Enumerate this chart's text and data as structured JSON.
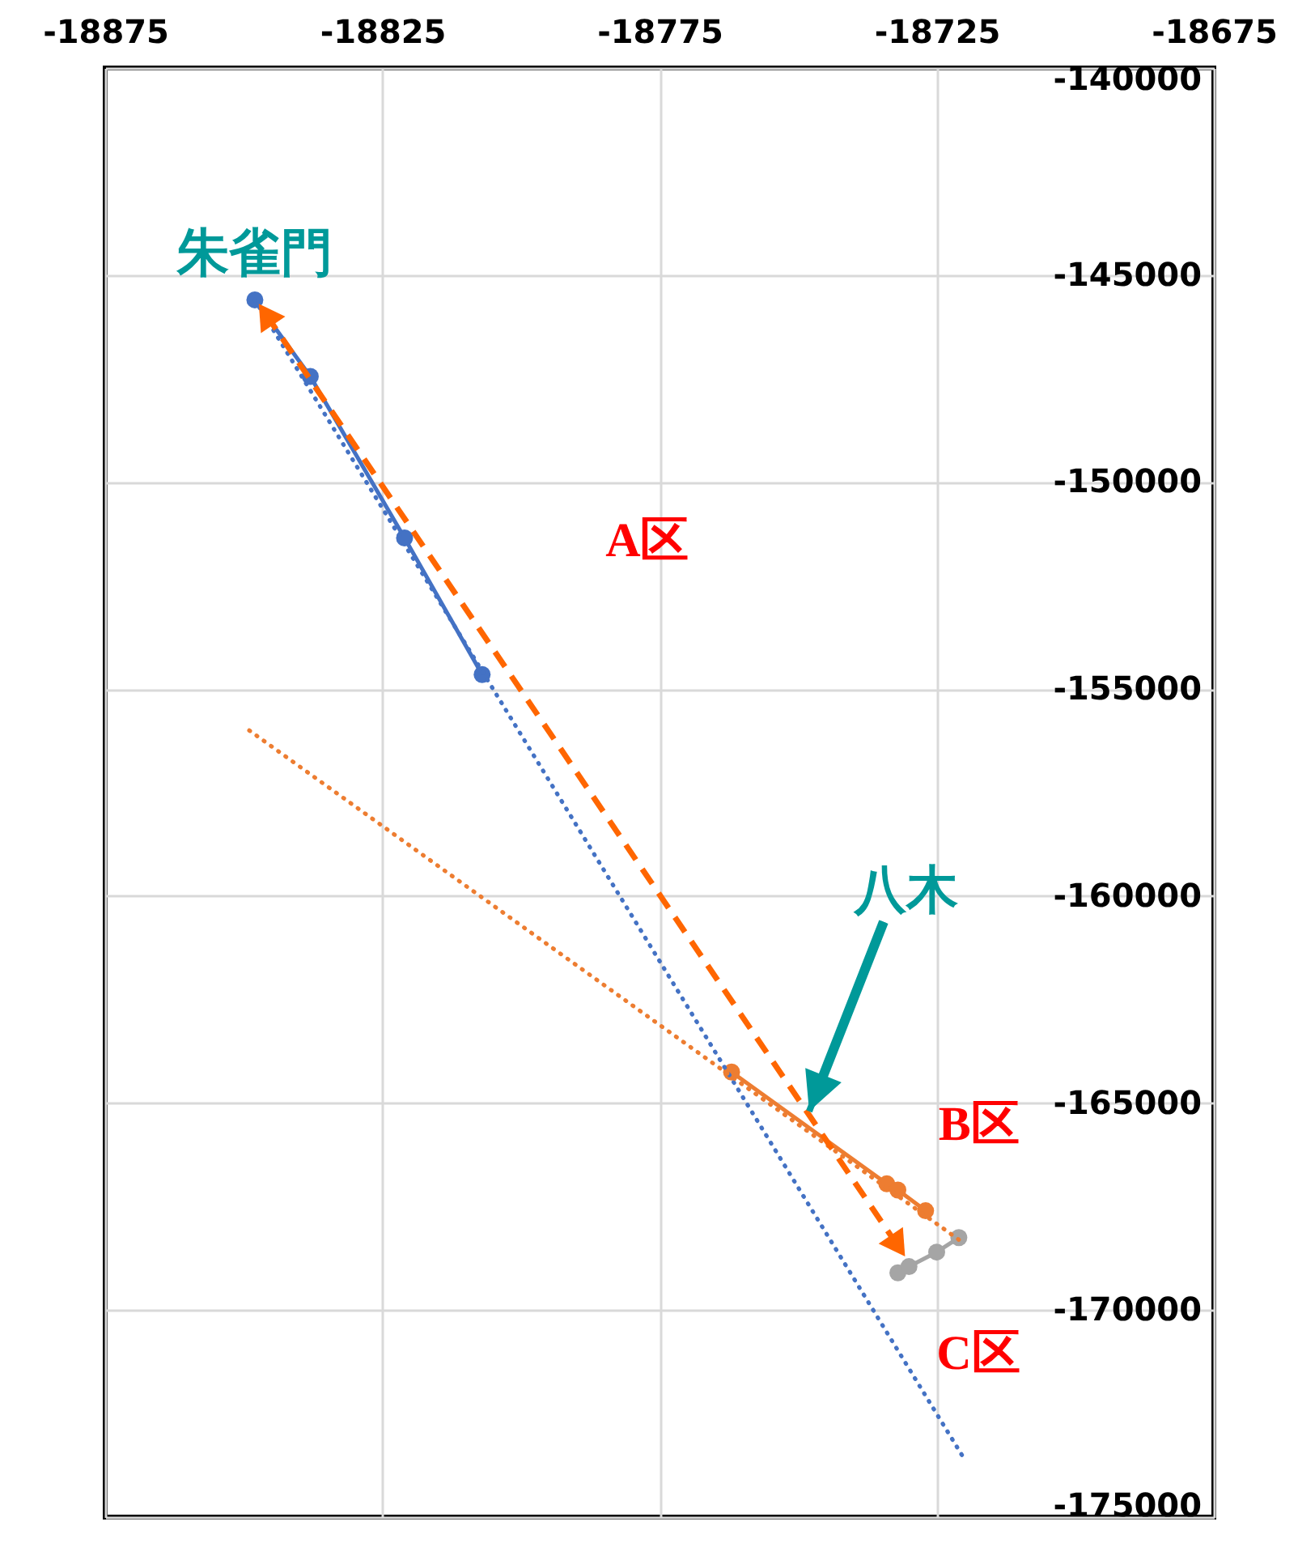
{
  "chart_data": {
    "type": "line",
    "xlim": [
      -18875,
      -18675
    ],
    "xticks": [
      -18875,
      -18825,
      -18775,
      -18725,
      -18675
    ],
    "ylim": [
      -175000,
      -140000
    ],
    "yticks": [
      -175000,
      -170000,
      -165000,
      -160000,
      -155000,
      -150000,
      -145000,
      -140000
    ],
    "grid": true,
    "marker": "circle",
    "line_style": "solid",
    "series": [
      {
        "name": "A区",
        "color": "#4472c4",
        "x": [
          -18848,
          -18838,
          -18821,
          -18807
        ],
        "values": [
          -145600,
          -147450,
          -151350,
          -154650
        ]
      },
      {
        "name": "B区",
        "color": "#ed7d31",
        "x": [
          -18762,
          -18734,
          -18732,
          -18727
        ],
        "values": [
          -164250,
          -166950,
          -167100,
          -167600
        ]
      },
      {
        "name": "C区",
        "color": "#a5a5a5",
        "x": [
          -18732,
          -18730,
          -18725,
          -18721
        ],
        "values": [
          -169100,
          -168950,
          -168600,
          -168250
        ]
      },
      {
        "color": "#4472c4",
        "line_style": "dotted",
        "marker": "none",
        "x": [
          -18848,
          -18720
        ],
        "values": [
          -145600,
          -173600
        ]
      },
      {
        "color": "#ed7d31",
        "line_style": "dotted",
        "marker": "none",
        "x": [
          -18849,
          -18721
        ],
        "values": [
          -156000,
          -168300
        ]
      },
      {
        "color": "#ff6600",
        "line_style": "dashed",
        "marker": "triangle",
        "x": [
          -18846,
          -18732
        ],
        "values": [
          -145950,
          -168450
        ]
      }
    ],
    "annotations": [
      {
        "text": "朱雀門",
        "x": -18848,
        "y": -145600
      },
      {
        "text": "八木",
        "x": -18748,
        "y": -165200
      }
    ]
  }
}
